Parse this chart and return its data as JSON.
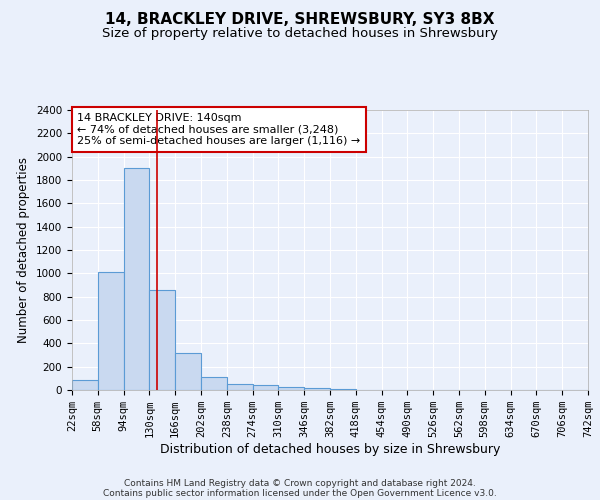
{
  "title1": "14, BRACKLEY DRIVE, SHREWSBURY, SY3 8BX",
  "title2": "Size of property relative to detached houses in Shrewsbury",
  "xlabel": "Distribution of detached houses by size in Shrewsbury",
  "ylabel": "Number of detached properties",
  "bin_edges": [
    22,
    58,
    94,
    130,
    166,
    202,
    238,
    274,
    310,
    346,
    382,
    418,
    454,
    490,
    526,
    562,
    598,
    634,
    670,
    706,
    742
  ],
  "bar_heights": [
    90,
    1010,
    1900,
    860,
    320,
    110,
    50,
    45,
    30,
    20,
    5,
    0,
    0,
    0,
    0,
    0,
    0,
    0,
    0,
    0
  ],
  "bar_color": "#c9d9f0",
  "bar_edge_color": "#5b9bd5",
  "bar_edge_width": 0.8,
  "red_line_x": 140,
  "red_line_color": "#cc0000",
  "ylim": [
    0,
    2400
  ],
  "annotation_text": "14 BRACKLEY DRIVE: 140sqm\n← 74% of detached houses are smaller (3,248)\n25% of semi-detached houses are larger (1,116) →",
  "annotation_box_color": "#ffffff",
  "annotation_box_edgecolor": "#cc0000",
  "footnote1": "Contains HM Land Registry data © Crown copyright and database right 2024.",
  "footnote2": "Contains public sector information licensed under the Open Government Licence v3.0.",
  "background_color": "#eaf0fb",
  "grid_color": "#ffffff",
  "title1_fontsize": 11,
  "title2_fontsize": 9.5,
  "xlabel_fontsize": 9,
  "ylabel_fontsize": 8.5,
  "tick_fontsize": 7.5,
  "annotation_fontsize": 8,
  "footnote_fontsize": 6.5
}
